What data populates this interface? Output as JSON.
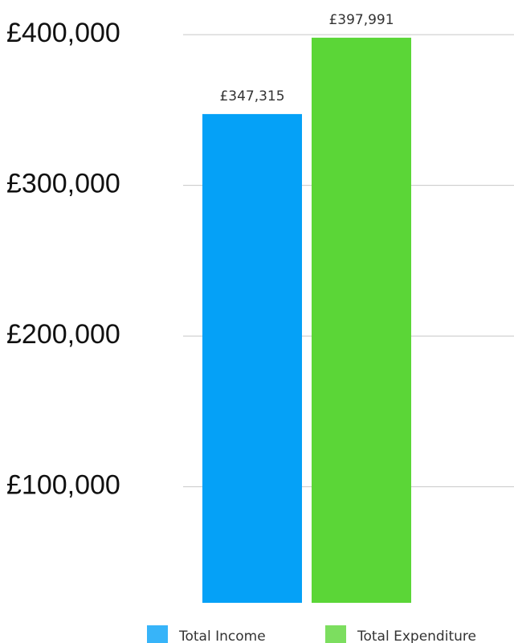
{
  "chart_data": {
    "type": "bar",
    "categories": [
      null
    ],
    "series": [
      {
        "name": "Total Income",
        "color": "#05a1f7",
        "values": [
          347315
        ],
        "value_labels": [
          "£347,315"
        ]
      },
      {
        "name": "Total Expenditure",
        "color": "#5bd637",
        "values": [
          397991
        ],
        "value_labels": [
          "£397,991"
        ]
      }
    ],
    "ylim": [
      23000,
      423000
    ],
    "yticks": [
      {
        "value": 100000,
        "label": "£100,000"
      },
      {
        "value": 200000,
        "label": "£200,000"
      },
      {
        "value": 300000,
        "label": "£300,000"
      },
      {
        "value": 400000,
        "label": "£400,000"
      }
    ],
    "grid": true,
    "legend": "bottom"
  }
}
